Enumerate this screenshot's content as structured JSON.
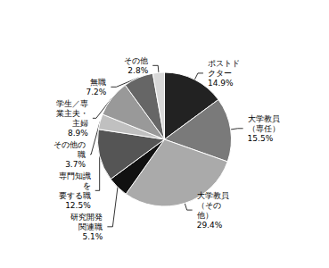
{
  "chart_data": {
    "type": "pie",
    "categories": [
      "ポストド\nクター",
      "大学教員\n（専任）",
      "大学教員\n（その\n他）",
      "研究開発\n関連職",
      "専門知識\nを\n要する職",
      "その他の\n職",
      "学生／専\n業主夫・\n主婦",
      "無職",
      "その他"
    ],
    "values": [
      14.9,
      15.5,
      29.4,
      5.1,
      12.5,
      3.7,
      8.9,
      7.2,
      2.8
    ],
    "value_labels": [
      "14.9%",
      "15.5%",
      "29.4%",
      "5.1%",
      "12.5%",
      "3.7%",
      "8.9%",
      "7.2%",
      "2.8%"
    ],
    "colors": [
      "#222222",
      "#7a7a7a",
      "#aaaaaa",
      "#111111",
      "#555555",
      "#c0c0c0",
      "#999999",
      "#666666",
      "#d8d8d8"
    ],
    "data_labels": true
  }
}
